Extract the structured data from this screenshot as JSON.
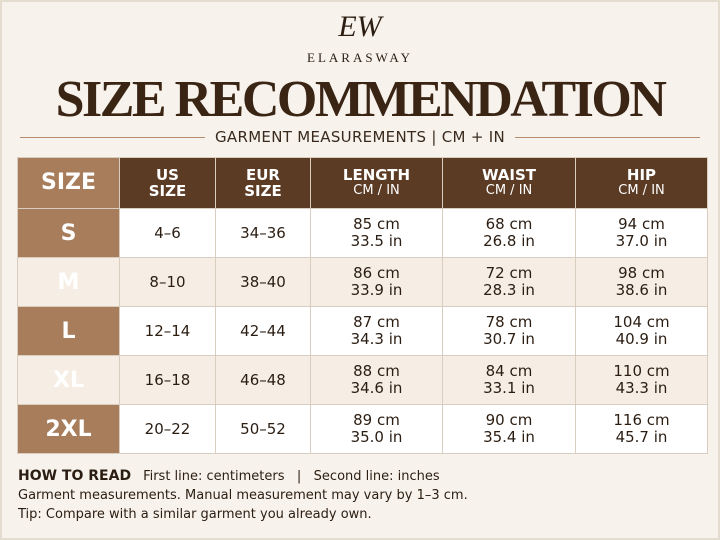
{
  "header": {
    "logo": "EW",
    "brand": "ELARASWAY",
    "title": "SIZE RECOMMENDATION",
    "subtitle": "GARMENT MEASUREMENTS | CM + IN"
  },
  "table": {
    "columns": [
      {
        "label": "SIZE"
      },
      {
        "label": "US SIZE"
      },
      {
        "label": "EUR SIZE"
      },
      {
        "label": "LENGTH",
        "sub": "CM / IN"
      },
      {
        "label": "WAIST",
        "sub": "CM / IN"
      },
      {
        "label": "HIP",
        "sub": "CM / IN"
      }
    ],
    "rows": [
      {
        "size": "S",
        "us": "4–6",
        "eur": "34–36",
        "length": [
          "85 cm",
          "33.5 in"
        ],
        "waist": [
          "68 cm",
          "26.8 in"
        ],
        "hip": [
          "94 cm",
          "37.0 in"
        ]
      },
      {
        "size": "M",
        "us": "8–10",
        "eur": "38–40",
        "length": [
          "86 cm",
          "33.9 in"
        ],
        "waist": [
          "72 cm",
          "28.3 in"
        ],
        "hip": [
          "98 cm",
          "38.6 in"
        ]
      },
      {
        "size": "L",
        "us": "12–14",
        "eur": "42–44",
        "length": [
          "87 cm",
          "34.3 in"
        ],
        "waist": [
          "78 cm",
          "30.7 in"
        ],
        "hip": [
          "104 cm",
          "40.9 in"
        ]
      },
      {
        "size": "XL",
        "us": "16–18",
        "eur": "46–48",
        "length": [
          "88 cm",
          "34.6 in"
        ],
        "waist": [
          "84 cm",
          "33.1 in"
        ],
        "hip": [
          "110 cm",
          "43.3 in"
        ]
      },
      {
        "size": "2XL",
        "us": "20–22",
        "eur": "50–52",
        "length": [
          "89 cm",
          "35.0 in"
        ],
        "waist": [
          "90 cm",
          "35.4 in"
        ],
        "hip": [
          "116 cm",
          "45.7 in"
        ]
      }
    ]
  },
  "notes": {
    "heading": "HOW TO READ",
    "legend": "First line: centimeters   |   Second line: inches",
    "lines": [
      "Garment measurements. Manual measurement may vary by 1–3 cm.",
      "Tip: Compare with a similar garment you already own."
    ]
  }
}
